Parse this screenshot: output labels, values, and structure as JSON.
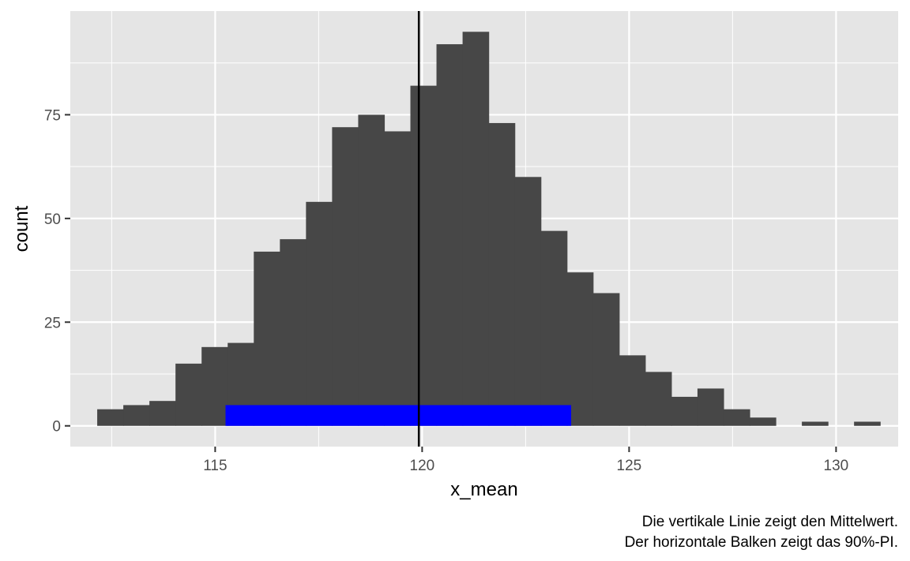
{
  "chart_data": {
    "type": "bar",
    "title": "",
    "xlabel": "x_mean",
    "ylabel": "count",
    "bin_width": 0.6305,
    "bins_start": 112.15,
    "counts": [
      4,
      5,
      6,
      15,
      19,
      20,
      42,
      45,
      54,
      72,
      75,
      71,
      82,
      92,
      95,
      73,
      60,
      47,
      37,
      32,
      17,
      13,
      7,
      9,
      4,
      2,
      0,
      1,
      0,
      1
    ],
    "xlim": [
      111.5,
      131.5
    ],
    "ylim": [
      -5,
      100
    ],
    "x_ticks": [
      115,
      120,
      125,
      130
    ],
    "x_tick_labels": [
      "115",
      "120",
      "125",
      "130"
    ],
    "y_ticks": [
      0,
      25,
      50,
      75
    ],
    "y_tick_labels": [
      "0",
      "25",
      "50",
      "75"
    ],
    "mean": 119.92,
    "interval": {
      "lower": 115.25,
      "upper": 123.6,
      "height": 5
    },
    "grid": true,
    "colors": {
      "panel": "#e5e5e5",
      "grid": "#ffffff",
      "bars": "#474747",
      "interval": "#0000ff",
      "mean_line": "#000000"
    },
    "caption": [
      "Die vertikale Linie zeigt den Mittelwert.",
      "Der horizontale Balken zeigt das 90%-PI."
    ]
  }
}
